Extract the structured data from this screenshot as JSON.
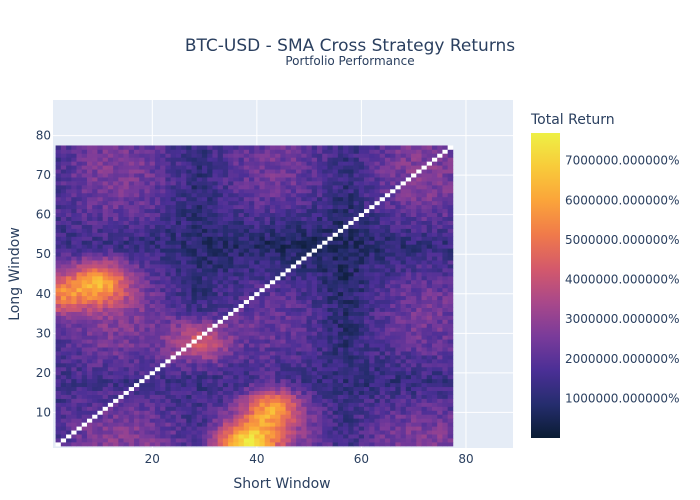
{
  "chart_data": {
    "type": "heatmap",
    "title": "BTC-USD - SMA Cross Strategy Returns",
    "subtitle": "Portfolio Performance",
    "xlabel": "Short Window",
    "ylabel": "Long Window",
    "xlim": [
      1,
      89
    ],
    "ylim": [
      1,
      89
    ],
    "x_ticks": [
      20,
      40,
      60,
      80
    ],
    "y_ticks": [
      10,
      20,
      30,
      40,
      50,
      60,
      70,
      80
    ],
    "grid": "on",
    "data_range": {
      "x": [
        2,
        77
      ],
      "y": [
        2,
        77
      ]
    },
    "colorbar": {
      "title": "Total Return",
      "min": 0,
      "max": 7700000,
      "ticks": [
        {
          "value": 1000000,
          "label": "1000000.000000%"
        },
        {
          "value": 2000000,
          "label": "2000000.000000%"
        },
        {
          "value": 3000000,
          "label": "3000000.000000%"
        },
        {
          "value": 4000000,
          "label": "4000000.000000%"
        },
        {
          "value": 5000000,
          "label": "5000000.000000%"
        },
        {
          "value": 6000000,
          "label": "6000000.000000%"
        },
        {
          "value": 7000000,
          "label": "7000000.000000%"
        }
      ],
      "colorscale": [
        "#0d0887",
        "#46039f",
        "#7201a8",
        "#9c179e",
        "#bd3786",
        "#d8576b",
        "#ed7953",
        "#fb9f3a",
        "#fdca26",
        "#f0f921"
      ],
      "displayed_colorscale": [
        "#0a1c33",
        "#252d6e",
        "#4b2f96",
        "#7a3b9a",
        "#a9488a",
        "#d4596b",
        "#f07a4a",
        "#fba43a",
        "#f8cb3a",
        "#eef045"
      ]
    },
    "diagonal_color": "#ffffff",
    "hotspots": [
      {
        "short": 10,
        "long": 43,
        "value": 5600000
      },
      {
        "short": 43,
        "long": 11,
        "value": 5600000
      },
      {
        "short": 29,
        "long": 28,
        "value": 4700000
      },
      {
        "short": 2,
        "long": 40,
        "value": 5000000
      },
      {
        "short": 38,
        "long": 2,
        "value": 6800000
      }
    ]
  }
}
